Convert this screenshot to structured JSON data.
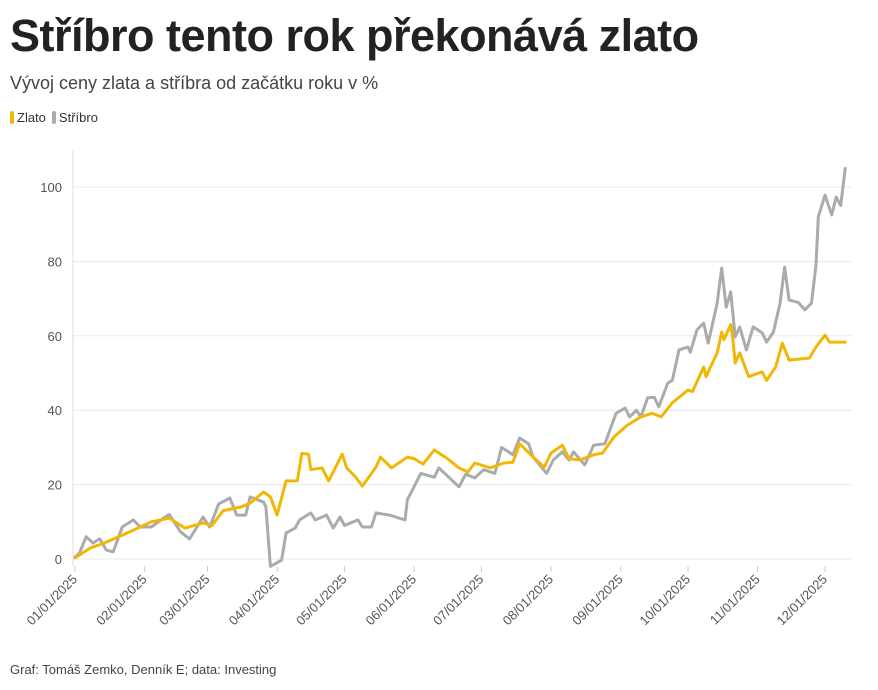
{
  "title": "Stříbro tento rok překonává zlato",
  "subtitle": "Vývoj ceny zlata a stříbra od začátku roku v %",
  "footer": "Graf: Tomáš Zemko, Denník E; data: Investing",
  "chart_data": {
    "type": "line",
    "title": "Stříbro tento rok překonává zlato",
    "subtitle": "Vývoj ceny zlata a stříbra od začátku roku v %",
    "xlabel": "",
    "ylabel": "",
    "ylim": [
      -5,
      110
    ],
    "yticks": [
      0,
      20,
      40,
      60,
      80,
      100
    ],
    "xticks": [
      "01/01/2025",
      "02/01/2025",
      "03/01/2025",
      "04/01/2025",
      "05/01/2025",
      "06/01/2025",
      "07/01/2025",
      "08/01/2025",
      "09/01/2025",
      "10/01/2025",
      "11/01/2025",
      "12/01/2025"
    ],
    "grid": true,
    "legend": "top-left",
    "series": [
      {
        "name": "Zlato",
        "color": "#f2b705",
        "points": [
          [
            "2025-01-01",
            0.3
          ],
          [
            "2025-01-08",
            3
          ],
          [
            "2025-01-14",
            4.3
          ],
          [
            "2025-01-22",
            6.4
          ],
          [
            "2025-01-29",
            8.3
          ],
          [
            "2025-02-04",
            10
          ],
          [
            "2025-02-12",
            11
          ],
          [
            "2025-02-19",
            8.3
          ],
          [
            "2025-02-27",
            9.7
          ],
          [
            "2025-03-03",
            9
          ],
          [
            "2025-03-08",
            13
          ],
          [
            "2025-03-16",
            14
          ],
          [
            "2025-03-20",
            15
          ],
          [
            "2025-03-26",
            18
          ],
          [
            "2025-03-29",
            16.7
          ],
          [
            "2025-04-01",
            11.8
          ],
          [
            "2025-04-05",
            21
          ],
          [
            "2025-04-10",
            21
          ],
          [
            "2025-04-12",
            28.4
          ],
          [
            "2025-04-15",
            28.2
          ],
          [
            "2025-04-16",
            24
          ],
          [
            "2025-04-21",
            24.5
          ],
          [
            "2025-04-24",
            21
          ],
          [
            "2025-04-30",
            28.2
          ],
          [
            "2025-05-02",
            24.5
          ],
          [
            "2025-05-06",
            22
          ],
          [
            "2025-05-09",
            19.6
          ],
          [
            "2025-05-15",
            24.7
          ],
          [
            "2025-05-17",
            27.4
          ],
          [
            "2025-05-22",
            24.5
          ],
          [
            "2025-05-29",
            27.4
          ],
          [
            "2025-06-01",
            27
          ],
          [
            "2025-06-05",
            25.5
          ],
          [
            "2025-06-10",
            29.3
          ],
          [
            "2025-06-16",
            26.9
          ],
          [
            "2025-06-21",
            24.5
          ],
          [
            "2025-06-25",
            23.4
          ],
          [
            "2025-06-28",
            25.8
          ],
          [
            "2025-07-05",
            24.5
          ],
          [
            "2025-07-11",
            25.8
          ],
          [
            "2025-07-15",
            26
          ],
          [
            "2025-07-18",
            31
          ],
          [
            "2025-07-23",
            28
          ],
          [
            "2025-07-29",
            24.7
          ],
          [
            "2025-08-01",
            28.5
          ],
          [
            "2025-08-06",
            30.6
          ],
          [
            "2025-08-09",
            27
          ],
          [
            "2025-08-14",
            26.6
          ],
          [
            "2025-08-20",
            28
          ],
          [
            "2025-08-24",
            28.5
          ],
          [
            "2025-08-29",
            32.8
          ],
          [
            "2025-09-04",
            36
          ],
          [
            "2025-09-10",
            38.2
          ],
          [
            "2025-09-15",
            39.2
          ],
          [
            "2025-09-19",
            38.2
          ],
          [
            "2025-09-24",
            42
          ],
          [
            "2025-10-01",
            45.4
          ],
          [
            "2025-10-03",
            45
          ],
          [
            "2025-10-08",
            51.6
          ],
          [
            "2025-10-09",
            49
          ],
          [
            "2025-10-14",
            55.4
          ],
          [
            "2025-10-16",
            61
          ],
          [
            "2025-10-17",
            59
          ],
          [
            "2025-10-20",
            63
          ],
          [
            "2025-10-21",
            59
          ],
          [
            "2025-10-22",
            52.7
          ],
          [
            "2025-10-24",
            55.4
          ],
          [
            "2025-10-28",
            49
          ],
          [
            "2025-11-03",
            50.3
          ],
          [
            "2025-11-05",
            48
          ],
          [
            "2025-11-09",
            51.6
          ],
          [
            "2025-11-12",
            58
          ],
          [
            "2025-11-15",
            53.5
          ],
          [
            "2025-11-24",
            54
          ],
          [
            "2025-11-27",
            57
          ],
          [
            "2025-12-01",
            60.2
          ],
          [
            "2025-12-03",
            58.3
          ],
          [
            "2025-12-10",
            58.3
          ]
        ]
      },
      {
        "name": "Stříbro",
        "color": "#a9abae",
        "points": [
          [
            "2025-01-01",
            0.5
          ],
          [
            "2025-01-03",
            1.6
          ],
          [
            "2025-01-06",
            6
          ],
          [
            "2025-01-09",
            4.3
          ],
          [
            "2025-01-12",
            5.4
          ],
          [
            "2025-01-15",
            2.4
          ],
          [
            "2025-01-18",
            1.9
          ],
          [
            "2025-01-22",
            8.6
          ],
          [
            "2025-01-27",
            10.5
          ],
          [
            "2025-01-30",
            8.6
          ],
          [
            "2025-02-04",
            8.6
          ],
          [
            "2025-02-09",
            10.8
          ],
          [
            "2025-02-12",
            12
          ],
          [
            "2025-02-17",
            7.3
          ],
          [
            "2025-02-21",
            5.4
          ],
          [
            "2025-02-24",
            8.3
          ],
          [
            "2025-02-27",
            11.3
          ],
          [
            "2025-03-02",
            8.6
          ],
          [
            "2025-03-06",
            14.8
          ],
          [
            "2025-03-11",
            16.4
          ],
          [
            "2025-03-14",
            11.8
          ],
          [
            "2025-03-18",
            11.8
          ],
          [
            "2025-03-20",
            16.7
          ],
          [
            "2025-03-26",
            15.3
          ],
          [
            "2025-03-27",
            14
          ],
          [
            "2025-03-29",
            -2
          ],
          [
            "2025-04-03",
            -0.3
          ],
          [
            "2025-04-05",
            7
          ],
          [
            "2025-04-09",
            8.3
          ],
          [
            "2025-04-11",
            10.5
          ],
          [
            "2025-04-16",
            12.4
          ],
          [
            "2025-04-18",
            10.5
          ],
          [
            "2025-04-23",
            11.8
          ],
          [
            "2025-04-26",
            8.3
          ],
          [
            "2025-04-29",
            11.3
          ],
          [
            "2025-05-01",
            9
          ],
          [
            "2025-05-07",
            10.5
          ],
          [
            "2025-05-09",
            8.6
          ],
          [
            "2025-05-13",
            8.6
          ],
          [
            "2025-05-15",
            12.4
          ],
          [
            "2025-05-21",
            11.8
          ],
          [
            "2025-05-28",
            10.5
          ],
          [
            "2025-05-29",
            15.9
          ],
          [
            "2025-06-04",
            23
          ],
          [
            "2025-06-10",
            22
          ],
          [
            "2025-06-12",
            24.5
          ],
          [
            "2025-06-21",
            19.4
          ],
          [
            "2025-06-24",
            22.8
          ],
          [
            "2025-06-28",
            21.8
          ],
          [
            "2025-07-02",
            24
          ],
          [
            "2025-07-07",
            23
          ],
          [
            "2025-07-10",
            30
          ],
          [
            "2025-07-15",
            28
          ],
          [
            "2025-07-18",
            32.5
          ],
          [
            "2025-07-22",
            31
          ],
          [
            "2025-07-24",
            27.4
          ],
          [
            "2025-07-30",
            23
          ],
          [
            "2025-08-02",
            26.6
          ],
          [
            "2025-08-06",
            28.8
          ],
          [
            "2025-08-09",
            26.6
          ],
          [
            "2025-08-11",
            28.8
          ],
          [
            "2025-08-16",
            25.3
          ],
          [
            "2025-08-20",
            30.6
          ],
          [
            "2025-08-25",
            31
          ],
          [
            "2025-08-28",
            36
          ],
          [
            "2025-08-30",
            39.2
          ],
          [
            "2025-09-03",
            40.6
          ],
          [
            "2025-09-05",
            38.2
          ],
          [
            "2025-09-08",
            40
          ],
          [
            "2025-09-10",
            38.2
          ],
          [
            "2025-09-13",
            43.3
          ],
          [
            "2025-09-16",
            43.5
          ],
          [
            "2025-09-18",
            40.9
          ],
          [
            "2025-09-22",
            47.3
          ],
          [
            "2025-09-24",
            48
          ],
          [
            "2025-09-27",
            56.2
          ],
          [
            "2025-10-01",
            57
          ],
          [
            "2025-10-02",
            55.6
          ],
          [
            "2025-10-05",
            61.6
          ],
          [
            "2025-10-08",
            63.4
          ],
          [
            "2025-10-10",
            58
          ],
          [
            "2025-10-14",
            68.8
          ],
          [
            "2025-10-16",
            78.2
          ],
          [
            "2025-10-18",
            67.7
          ],
          [
            "2025-10-20",
            71.8
          ],
          [
            "2025-10-22",
            59.7
          ],
          [
            "2025-10-24",
            62.4
          ],
          [
            "2025-10-27",
            56.2
          ],
          [
            "2025-10-30",
            62.4
          ],
          [
            "2025-11-03",
            60.8
          ],
          [
            "2025-11-05",
            58.3
          ],
          [
            "2025-11-08",
            61
          ],
          [
            "2025-11-11",
            68.8
          ],
          [
            "2025-11-13",
            78.5
          ],
          [
            "2025-11-15",
            69.6
          ],
          [
            "2025-11-19",
            69
          ],
          [
            "2025-11-22",
            67
          ],
          [
            "2025-11-25",
            68.8
          ],
          [
            "2025-11-27",
            79
          ],
          [
            "2025-11-28",
            92
          ],
          [
            "2025-12-01",
            97.8
          ],
          [
            "2025-12-04",
            92.5
          ],
          [
            "2025-12-06",
            97.3
          ],
          [
            "2025-12-08",
            95
          ],
          [
            "2025-12-10",
            105
          ]
        ]
      }
    ]
  }
}
